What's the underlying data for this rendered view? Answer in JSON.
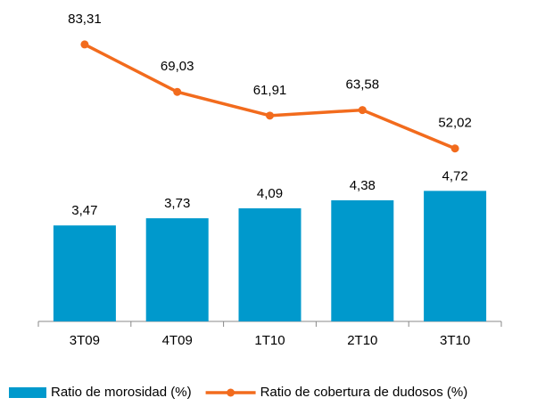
{
  "chart_data": {
    "type": "combo",
    "categories": [
      "3T09",
      "4T09",
      "1T10",
      "2T10",
      "3T10"
    ],
    "series": [
      {
        "name": "Ratio de morosidad (%)",
        "type": "bar",
        "color": "#0099cc",
        "values": [
          3.47,
          3.73,
          4.09,
          4.38,
          4.72
        ],
        "value_labels": [
          "3,47",
          "3,73",
          "4,09",
          "4,38",
          "4,72"
        ]
      },
      {
        "name": "Ratio de cobertura de dudosos (%)",
        "type": "line",
        "axis": "y2",
        "color": "#f26b1d",
        "values": [
          83.31,
          69.03,
          61.91,
          63.58,
          52.02
        ],
        "value_labels": [
          "83,31",
          "69,03",
          "61,91",
          "63,58",
          "52,02"
        ]
      }
    ],
    "ylim": [
      0,
      11.3
    ],
    "y2lim": [
      0,
      94
    ]
  }
}
